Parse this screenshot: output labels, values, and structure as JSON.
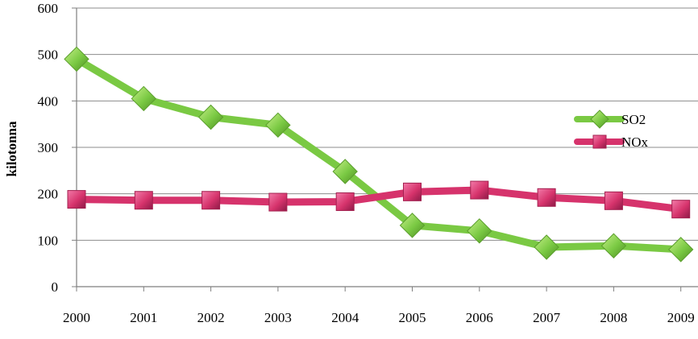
{
  "chart_data": {
    "type": "line",
    "title": "",
    "xlabel": "",
    "ylabel": "kilotonna",
    "categories": [
      "2000",
      "2001",
      "2002",
      "2003",
      "2004",
      "2005",
      "2006",
      "2007",
      "2008",
      "2009"
    ],
    "ylim": [
      0,
      600
    ],
    "yticks": [
      "0",
      "100",
      "200",
      "300",
      "400",
      "500",
      "600"
    ],
    "grid": true,
    "legend_position": "right",
    "series": [
      {
        "name": "SO2",
        "color": "#7ac943",
        "marker": "diamond",
        "values": [
          490,
          405,
          365,
          348,
          248,
          132,
          120,
          85,
          88,
          80
        ]
      },
      {
        "name": "NOx",
        "color": "#d6336c",
        "marker": "square",
        "values": [
          188,
          186,
          186,
          182,
          183,
          204,
          208,
          192,
          185,
          167
        ]
      }
    ]
  }
}
